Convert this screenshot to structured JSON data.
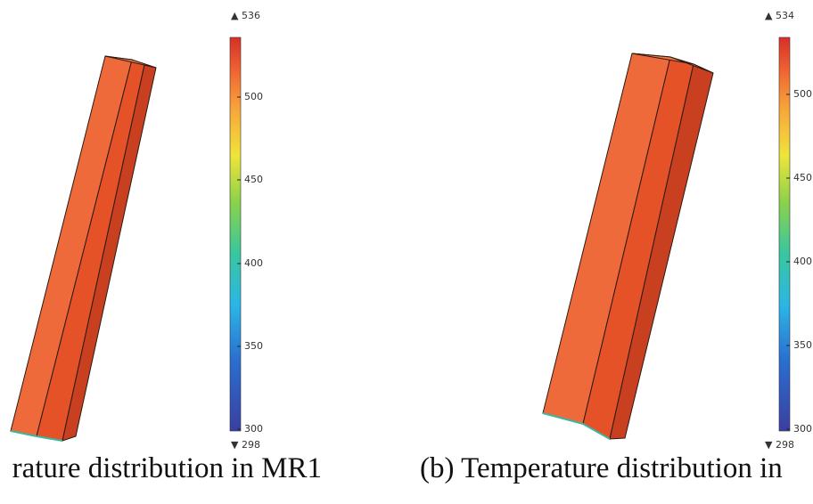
{
  "colorbar_colors": [
    "#3a3fa0",
    "#2a6fd0",
    "#2bb6e6",
    "#38c79f",
    "#8ad24a",
    "#f0e43a",
    "#f7a53a",
    "#ee6131",
    "#d63027"
  ],
  "panels": [
    {
      "legend": {
        "max": "▲ 536",
        "min": "▼ 298",
        "ticks": [
          {
            "label": "500",
            "value": 500
          },
          {
            "label": "450",
            "value": 450
          },
          {
            "label": "400",
            "value": 400
          },
          {
            "label": "350",
            "value": 350
          },
          {
            "label": "300",
            "value": 300
          }
        ]
      },
      "caption": "rature distribution in MR1"
    },
    {
      "legend": {
        "max": "▲ 534",
        "min": "▼ 298",
        "ticks": [
          {
            "label": "500",
            "value": 500
          },
          {
            "label": "450",
            "value": 450
          },
          {
            "label": "400",
            "value": 400
          },
          {
            "label": "350",
            "value": 350
          },
          {
            "label": "300",
            "value": 300
          }
        ]
      },
      "caption": "(b) Temperature distribution in"
    }
  ]
}
